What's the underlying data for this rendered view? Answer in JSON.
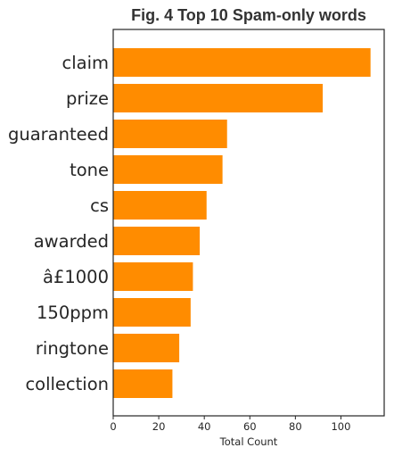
{
  "chart_data": {
    "type": "bar",
    "orientation": "horizontal",
    "title": "Fig. 4 Top 10 Spam-only words",
    "xlabel": "Total Count",
    "ylabel": "",
    "categories": [
      "claim",
      "prize",
      "guaranteed",
      "tone",
      "cs",
      "awarded",
      "â£1000",
      "150ppm",
      "ringtone",
      "collection"
    ],
    "values": [
      113,
      92,
      50,
      48,
      41,
      38,
      35,
      34,
      29,
      26
    ],
    "xlim": [
      0,
      119
    ],
    "xticks": [
      0,
      20,
      40,
      60,
      80,
      100
    ],
    "bar_color": "#ff8c00",
    "grid": false
  }
}
